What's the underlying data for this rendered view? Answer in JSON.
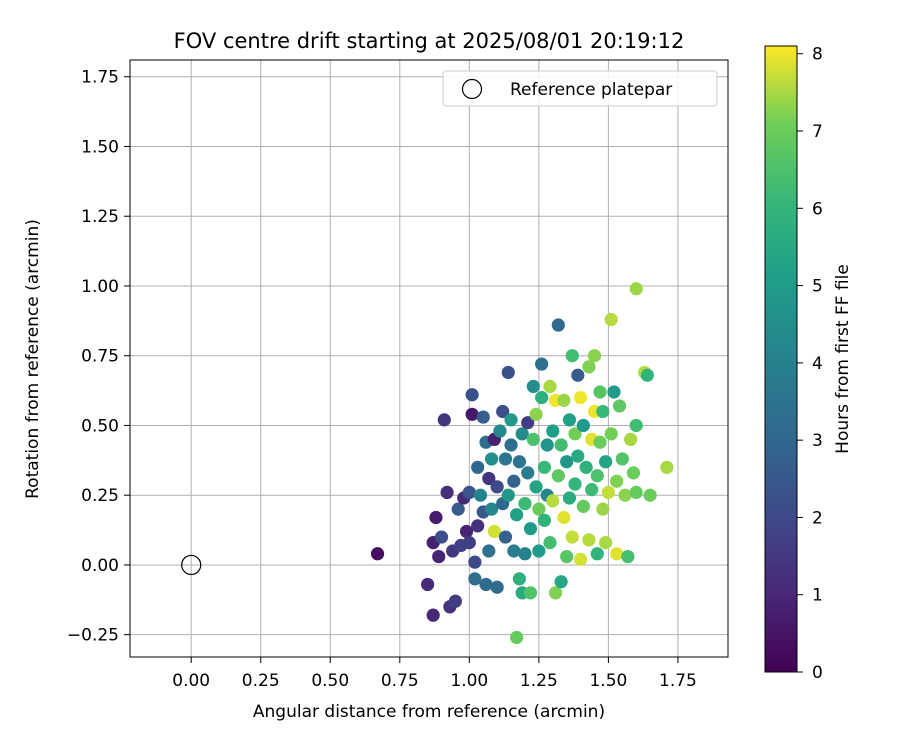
{
  "chart_data": {
    "type": "scatter",
    "title": "FOV centre drift starting at 2025/08/01 20:19:12",
    "xlabel": "Angular distance from reference (arcmin)",
    "ylabel": "Rotation from reference (arcmin)",
    "xlim": [
      -0.22,
      1.93
    ],
    "ylim": [
      -0.33,
      1.81
    ],
    "xticks": [
      0.0,
      0.25,
      0.5,
      0.75,
      1.0,
      1.25,
      1.5,
      1.75
    ],
    "xtick_labels": [
      "0.00",
      "0.25",
      "0.50",
      "0.75",
      "1.00",
      "1.25",
      "1.50",
      "1.75"
    ],
    "yticks": [
      -0.25,
      0.0,
      0.25,
      0.5,
      0.75,
      1.0,
      1.25,
      1.5,
      1.75
    ],
    "ytick_labels": [
      "−0.25",
      "0.00",
      "0.25",
      "0.50",
      "0.75",
      "1.00",
      "1.25",
      "1.50",
      "1.75"
    ],
    "grid": true,
    "legend": {
      "placement": "top-right",
      "entries": [
        "Reference platepar"
      ]
    },
    "reference_point": {
      "x": 0.0,
      "y": 0.0,
      "marker": "open-circle"
    },
    "colorbar": {
      "label": "Hours from first FF file",
      "range": [
        0,
        8.1
      ],
      "ticks": [
        0,
        1,
        2,
        3,
        4,
        5,
        6,
        7,
        8
      ],
      "tick_labels": [
        "0",
        "1",
        "2",
        "3",
        "4",
        "5",
        "6",
        "7",
        "8"
      ],
      "colormap": "viridis"
    },
    "points": [
      {
        "x": 0.67,
        "y": 0.04,
        "c": 0.3
      },
      {
        "x": 0.85,
        "y": -0.07,
        "c": 1.1
      },
      {
        "x": 0.87,
        "y": -0.18,
        "c": 1.0
      },
      {
        "x": 0.87,
        "y": 0.08,
        "c": 0.8
      },
      {
        "x": 0.88,
        "y": 0.17,
        "c": 0.7
      },
      {
        "x": 0.89,
        "y": 0.03,
        "c": 0.9
      },
      {
        "x": 0.9,
        "y": 0.1,
        "c": 2.2
      },
      {
        "x": 0.91,
        "y": 0.52,
        "c": 1.4
      },
      {
        "x": 0.92,
        "y": 0.26,
        "c": 1.2
      },
      {
        "x": 0.93,
        "y": -0.15,
        "c": 1.3
      },
      {
        "x": 0.94,
        "y": 0.05,
        "c": 1.5
      },
      {
        "x": 0.95,
        "y": -0.13,
        "c": 1.6
      },
      {
        "x": 0.96,
        "y": 0.2,
        "c": 2.6
      },
      {
        "x": 0.97,
        "y": 0.07,
        "c": 1.8
      },
      {
        "x": 0.98,
        "y": 0.24,
        "c": 1.1
      },
      {
        "x": 0.99,
        "y": 0.12,
        "c": 0.9
      },
      {
        "x": 1.0,
        "y": 0.08,
        "c": 1.7
      },
      {
        "x": 1.0,
        "y": 0.26,
        "c": 2.4
      },
      {
        "x": 1.01,
        "y": 0.61,
        "c": 2.3
      },
      {
        "x": 1.01,
        "y": 0.54,
        "c": 0.6
      },
      {
        "x": 1.02,
        "y": 0.01,
        "c": 2.0
      },
      {
        "x": 1.02,
        "y": -0.05,
        "c": 3.3
      },
      {
        "x": 1.03,
        "y": 0.14,
        "c": 1.3
      },
      {
        "x": 1.03,
        "y": 0.35,
        "c": 3.0
      },
      {
        "x": 1.04,
        "y": 0.25,
        "c": 4.1
      },
      {
        "x": 1.05,
        "y": 0.19,
        "c": 2.5
      },
      {
        "x": 1.05,
        "y": 0.53,
        "c": 2.7
      },
      {
        "x": 1.06,
        "y": 0.44,
        "c": 3.2
      },
      {
        "x": 1.06,
        "y": -0.07,
        "c": 3.1
      },
      {
        "x": 1.07,
        "y": 0.31,
        "c": 1.4
      },
      {
        "x": 1.07,
        "y": 0.05,
        "c": 3.4
      },
      {
        "x": 1.08,
        "y": 0.2,
        "c": 4.2
      },
      {
        "x": 1.08,
        "y": 0.38,
        "c": 4.6
      },
      {
        "x": 1.09,
        "y": 0.45,
        "c": 0.8
      },
      {
        "x": 1.09,
        "y": 0.12,
        "c": 7.8
      },
      {
        "x": 1.1,
        "y": 0.28,
        "c": 2.1
      },
      {
        "x": 1.1,
        "y": -0.08,
        "c": 3.2
      },
      {
        "x": 1.11,
        "y": 0.48,
        "c": 4.3
      },
      {
        "x": 1.12,
        "y": 0.22,
        "c": 3.0
      },
      {
        "x": 1.12,
        "y": 0.55,
        "c": 2.2
      },
      {
        "x": 1.13,
        "y": 0.1,
        "c": 2.8
      },
      {
        "x": 1.13,
        "y": 0.38,
        "c": 3.6
      },
      {
        "x": 1.14,
        "y": 0.69,
        "c": 2.3
      },
      {
        "x": 1.14,
        "y": 0.25,
        "c": 4.8
      },
      {
        "x": 1.15,
        "y": 0.43,
        "c": 3.3
      },
      {
        "x": 1.15,
        "y": 0.52,
        "c": 4.9
      },
      {
        "x": 1.16,
        "y": 0.05,
        "c": 3.9
      },
      {
        "x": 1.16,
        "y": 0.3,
        "c": 2.9
      },
      {
        "x": 1.17,
        "y": 0.18,
        "c": 5.2
      },
      {
        "x": 1.17,
        "y": -0.26,
        "c": 6.9
      },
      {
        "x": 1.18,
        "y": 0.37,
        "c": 3.6
      },
      {
        "x": 1.18,
        "y": -0.05,
        "c": 5.8
      },
      {
        "x": 1.19,
        "y": 0.47,
        "c": 4.4
      },
      {
        "x": 1.19,
        "y": -0.1,
        "c": 5.5
      },
      {
        "x": 1.2,
        "y": 0.22,
        "c": 6.2
      },
      {
        "x": 1.2,
        "y": 0.04,
        "c": 4.1
      },
      {
        "x": 1.21,
        "y": 0.51,
        "c": 1.6
      },
      {
        "x": 1.21,
        "y": 0.33,
        "c": 3.8
      },
      {
        "x": 1.22,
        "y": -0.1,
        "c": 6.6
      },
      {
        "x": 1.22,
        "y": 0.13,
        "c": 5.0
      },
      {
        "x": 1.23,
        "y": 0.64,
        "c": 4.5
      },
      {
        "x": 1.23,
        "y": 0.45,
        "c": 6.5
      },
      {
        "x": 1.24,
        "y": 0.28,
        "c": 5.3
      },
      {
        "x": 1.24,
        "y": 0.54,
        "c": 7.3
      },
      {
        "x": 1.25,
        "y": 0.2,
        "c": 7.0
      },
      {
        "x": 1.25,
        "y": 0.05,
        "c": 4.9
      },
      {
        "x": 1.26,
        "y": 0.72,
        "c": 3.4
      },
      {
        "x": 1.26,
        "y": 0.6,
        "c": 5.7
      },
      {
        "x": 1.27,
        "y": 0.35,
        "c": 6.1
      },
      {
        "x": 1.27,
        "y": 0.16,
        "c": 5.9
      },
      {
        "x": 1.28,
        "y": 0.43,
        "c": 4.7
      },
      {
        "x": 1.28,
        "y": 0.25,
        "c": 4.2
      },
      {
        "x": 1.29,
        "y": 0.64,
        "c": 7.5
      },
      {
        "x": 1.29,
        "y": 0.08,
        "c": 6.4
      },
      {
        "x": 1.3,
        "y": 0.23,
        "c": 7.6
      },
      {
        "x": 1.3,
        "y": 0.48,
        "c": 5.1
      },
      {
        "x": 1.31,
        "y": -0.1,
        "c": 7.2
      },
      {
        "x": 1.31,
        "y": 0.59,
        "c": 8.0
      },
      {
        "x": 1.32,
        "y": 0.86,
        "c": 3.1
      },
      {
        "x": 1.32,
        "y": 0.32,
        "c": 6.8
      },
      {
        "x": 1.33,
        "y": -0.06,
        "c": 5.4
      },
      {
        "x": 1.33,
        "y": 0.43,
        "c": 6.3
      },
      {
        "x": 1.34,
        "y": 0.17,
        "c": 7.9
      },
      {
        "x": 1.34,
        "y": 0.59,
        "c": 7.4
      },
      {
        "x": 1.35,
        "y": 0.37,
        "c": 4.8
      },
      {
        "x": 1.35,
        "y": 0.03,
        "c": 6.7
      },
      {
        "x": 1.36,
        "y": 0.24,
        "c": 5.6
      },
      {
        "x": 1.36,
        "y": 0.52,
        "c": 5.2
      },
      {
        "x": 1.37,
        "y": 0.75,
        "c": 6.3
      },
      {
        "x": 1.37,
        "y": 0.1,
        "c": 7.7
      },
      {
        "x": 1.38,
        "y": 0.47,
        "c": 7.1
      },
      {
        "x": 1.38,
        "y": 0.29,
        "c": 6.0
      },
      {
        "x": 1.39,
        "y": 0.68,
        "c": 2.6
      },
      {
        "x": 1.39,
        "y": 0.39,
        "c": 5.5
      },
      {
        "x": 1.4,
        "y": 0.02,
        "c": 7.8
      },
      {
        "x": 1.4,
        "y": 0.6,
        "c": 8.0
      },
      {
        "x": 1.41,
        "y": 0.21,
        "c": 6.9
      },
      {
        "x": 1.41,
        "y": 0.5,
        "c": 4.9
      },
      {
        "x": 1.42,
        "y": 0.35,
        "c": 5.8
      },
      {
        "x": 1.43,
        "y": 0.09,
        "c": 7.6
      },
      {
        "x": 1.43,
        "y": 0.71,
        "c": 7.2
      },
      {
        "x": 1.44,
        "y": 0.27,
        "c": 6.2
      },
      {
        "x": 1.44,
        "y": 0.45,
        "c": 7.9
      },
      {
        "x": 1.45,
        "y": 0.75,
        "c": 7.3
      },
      {
        "x": 1.45,
        "y": 0.55,
        "c": 8.0
      },
      {
        "x": 1.46,
        "y": 0.32,
        "c": 6.5
      },
      {
        "x": 1.46,
        "y": 0.04,
        "c": 5.9
      },
      {
        "x": 1.47,
        "y": 0.44,
        "c": 7.0
      },
      {
        "x": 1.47,
        "y": 0.62,
        "c": 6.7
      },
      {
        "x": 1.48,
        "y": 0.2,
        "c": 7.4
      },
      {
        "x": 1.48,
        "y": 0.55,
        "c": 6.1
      },
      {
        "x": 1.49,
        "y": 0.37,
        "c": 5.3
      },
      {
        "x": 1.49,
        "y": 0.08,
        "c": 7.5
      },
      {
        "x": 1.5,
        "y": 0.26,
        "c": 7.7
      },
      {
        "x": 1.51,
        "y": 0.88,
        "c": 7.6
      },
      {
        "x": 1.51,
        "y": 0.47,
        "c": 7.1
      },
      {
        "x": 1.52,
        "y": 0.62,
        "c": 4.9
      },
      {
        "x": 1.53,
        "y": 0.04,
        "c": 7.9
      },
      {
        "x": 1.53,
        "y": 0.3,
        "c": 7.2
      },
      {
        "x": 1.54,
        "y": 0.57,
        "c": 6.8
      },
      {
        "x": 1.55,
        "y": 0.38,
        "c": 6.6
      },
      {
        "x": 1.56,
        "y": 0.25,
        "c": 7.3
      },
      {
        "x": 1.57,
        "y": 0.03,
        "c": 6.4
      },
      {
        "x": 1.58,
        "y": 0.45,
        "c": 7.5
      },
      {
        "x": 1.59,
        "y": 0.33,
        "c": 7.0
      },
      {
        "x": 1.6,
        "y": 0.26,
        "c": 6.9
      },
      {
        "x": 1.6,
        "y": 0.5,
        "c": 6.3
      },
      {
        "x": 1.6,
        "y": 0.99,
        "c": 7.4
      },
      {
        "x": 1.63,
        "y": 0.69,
        "c": 7.6
      },
      {
        "x": 1.64,
        "y": 0.68,
        "c": 5.9
      },
      {
        "x": 1.65,
        "y": 0.25,
        "c": 7.0
      },
      {
        "x": 1.71,
        "y": 0.35,
        "c": 7.5
      }
    ]
  }
}
